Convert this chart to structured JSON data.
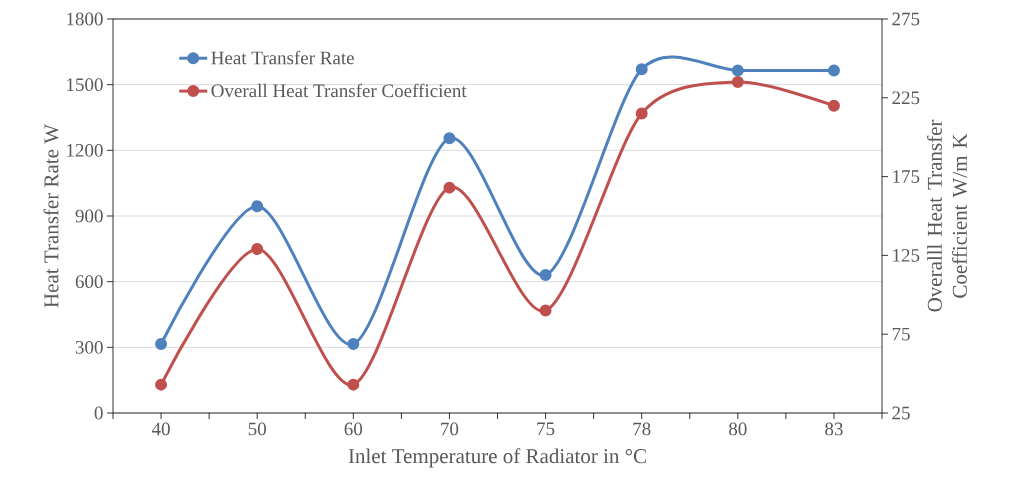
{
  "chart_data": {
    "type": "line",
    "xlabel": "Inlet Temperature of Radiator in °C",
    "ylabel": "Heat Transfer Rate W",
    "y2label": "Overalll Heat Transfer Coefficient W/m K",
    "categories": [
      "40",
      "50",
      "60",
      "70",
      "75",
      "78",
      "80",
      "83"
    ],
    "series": [
      {
        "name": "Heat Transfer Rate",
        "color": "#4f81bd",
        "axis": "y",
        "values": [
          315,
          945,
          315,
          1255,
          630,
          1570,
          1565,
          1565
        ]
      },
      {
        "name": "Overall Heat Transfer Coefficient",
        "color": "#c0504d",
        "axis": "y2",
        "values": [
          43,
          129,
          43,
          168,
          90,
          215,
          235,
          220
        ]
      }
    ],
    "ylim": [
      0,
      1800
    ],
    "yticks": [
      0,
      300,
      600,
      900,
      1200,
      1500,
      1800
    ],
    "y2lim": [
      25,
      275
    ],
    "y2ticks": [
      25,
      75,
      125,
      175,
      225,
      275
    ],
    "grid": "y",
    "legend": "top left",
    "marker": "circle"
  }
}
